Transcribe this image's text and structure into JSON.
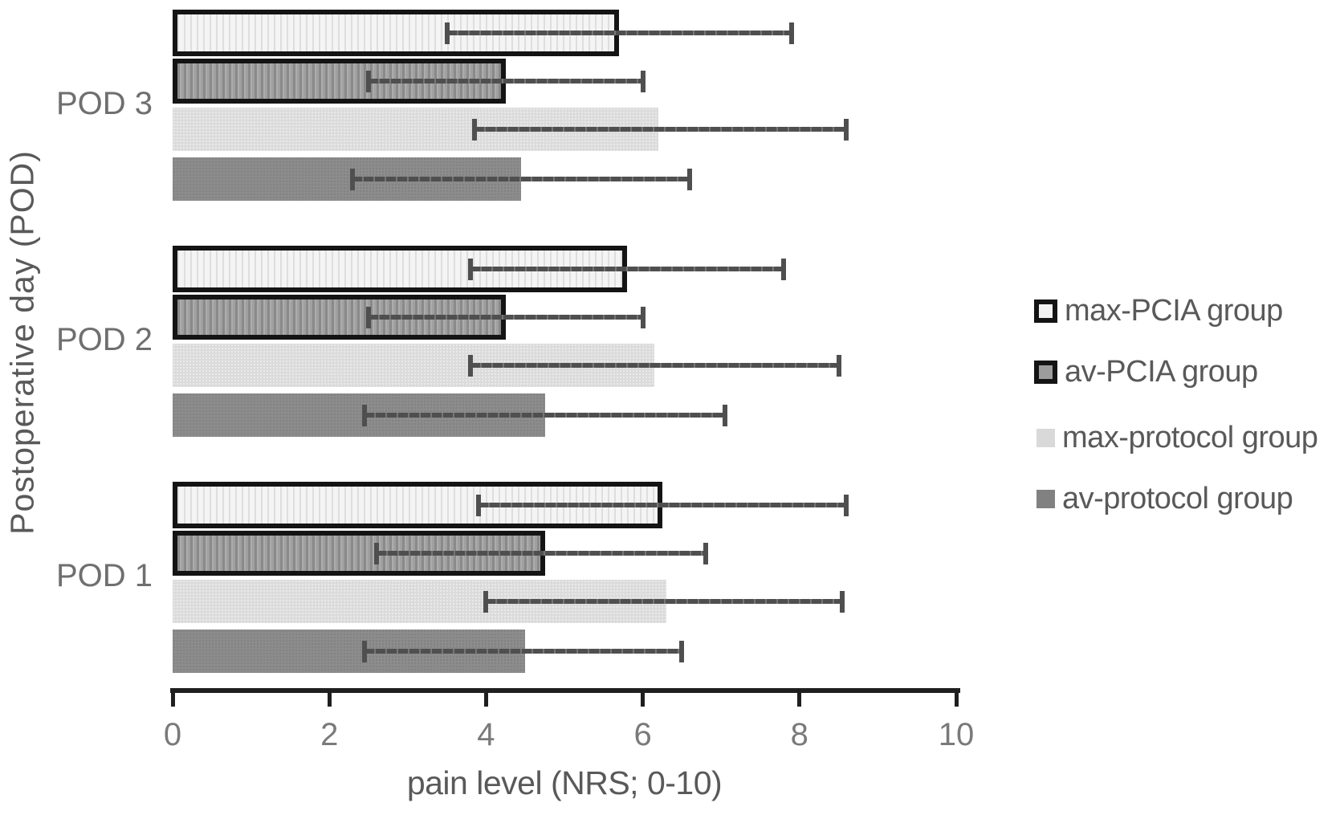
{
  "chart_data": {
    "type": "bar",
    "orientation": "horizontal",
    "title": "",
    "xlabel": "pain level (NRS; 0-10)",
    "ylabel": "Postoperative day (POD)",
    "categories": [
      "POD 1",
      "POD 2",
      "POD 3"
    ],
    "category_display_order_top_to_bottom": [
      "POD 3",
      "POD 2",
      "POD 1"
    ],
    "xticks": [
      0,
      2,
      4,
      6,
      8,
      10
    ],
    "xlim": [
      0,
      10
    ],
    "grid": false,
    "legend_position": "right",
    "error_bar_style": "plus-minus with caps",
    "series": [
      {
        "name": "max-PCIA group",
        "fill": "#f2f2f2",
        "border_color": "#141414",
        "pattern": "vertical-stripes",
        "values": [
          6.25,
          5.8,
          5.7
        ],
        "err_low": [
          3.9,
          3.8,
          3.5
        ],
        "err_high": [
          8.6,
          7.8,
          7.9
        ]
      },
      {
        "name": "av-PCIA group",
        "fill": "#9c9c9c",
        "border_color": "#141414",
        "pattern": "vertical-stripes",
        "values": [
          4.75,
          4.25,
          4.25
        ],
        "err_low": [
          2.6,
          2.5,
          2.5
        ],
        "err_high": [
          6.8,
          6.0,
          6.0
        ]
      },
      {
        "name": "max-protocol group",
        "fill": "#d9d9d9",
        "border_color": null,
        "pattern": "solid",
        "values": [
          6.3,
          6.15,
          6.2
        ],
        "err_low": [
          4.0,
          3.8,
          3.85
        ],
        "err_high": [
          8.55,
          8.5,
          8.6
        ]
      },
      {
        "name": "av-protocol group",
        "fill": "#8a8a8a",
        "border_color": null,
        "pattern": "solid",
        "values": [
          4.5,
          4.75,
          4.45
        ],
        "err_low": [
          2.45,
          2.45,
          2.3
        ],
        "err_high": [
          6.5,
          7.05,
          6.6
        ]
      }
    ],
    "colors": {
      "error_bar": "#4f4f4f",
      "axis": "#1f1f1f",
      "tick_label": "#7a7a7a",
      "axis_title": "#595959",
      "category_label": "#6f6f6f",
      "legend_text": "#595959",
      "background": "#ffffff"
    }
  }
}
